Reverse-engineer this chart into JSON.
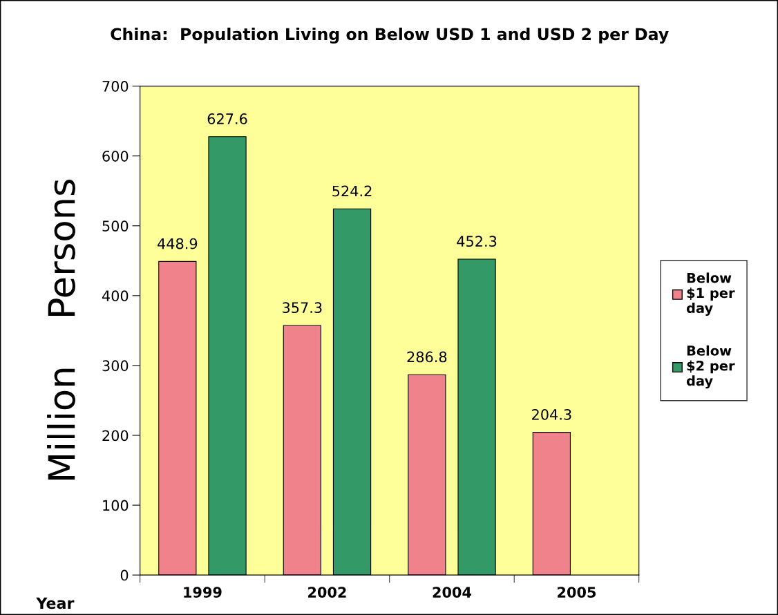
{
  "chart_data": {
    "type": "bar",
    "title": "China:  Population Living on Below USD 1 and USD 2 per Day",
    "xlabel": "Year",
    "ylabel": "Million    Persons",
    "categories": [
      "1999",
      "2002",
      "2004",
      "2005"
    ],
    "series": [
      {
        "name": "Below\n$1 per\nday",
        "color": "#f0828c",
        "values": [
          448.9,
          357.3,
          286.8,
          204.3
        ]
      },
      {
        "name": "Below\n$2 per\nday",
        "color": "#339966",
        "values": [
          627.6,
          524.2,
          452.3,
          null
        ]
      }
    ],
    "ylim": [
      0,
      700
    ],
    "yticks": [
      0,
      100,
      200,
      300,
      400,
      500,
      600,
      700
    ],
    "data_labels": true,
    "legend": "right",
    "grid": false
  }
}
